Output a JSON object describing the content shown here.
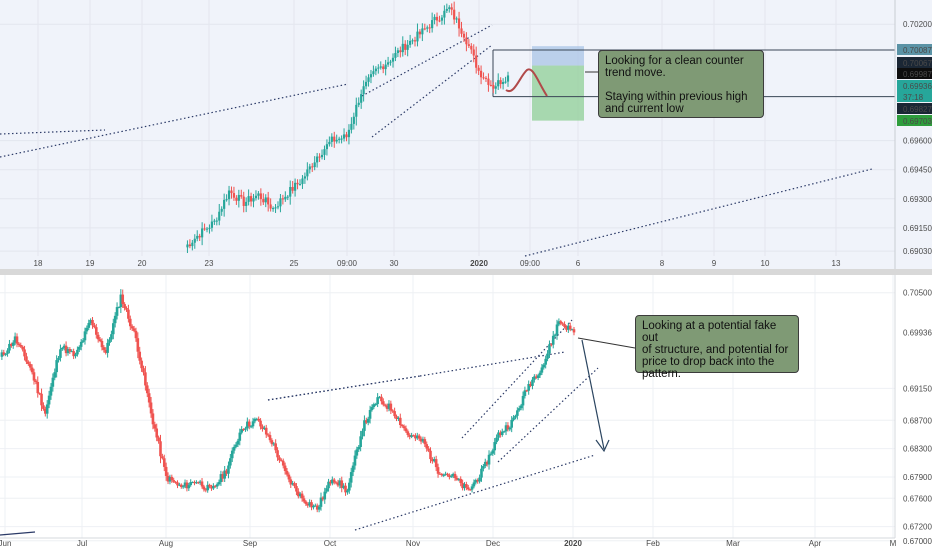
{
  "chart_data": [
    {
      "type": "candlestick",
      "panel": "top",
      "timeframe": "intraday",
      "x_tick_labels": [
        "18",
        "19",
        "20",
        "23",
        "25",
        "09:00",
        "30",
        "2020",
        "09:00",
        "6",
        "8",
        "9",
        "10",
        "13"
      ],
      "y_tick_labels": [
        "0.70200",
        "0.69600",
        "0.69450",
        "0.69300",
        "0.69150",
        "0.69030"
      ],
      "ylim": [
        0.69005,
        0.70325
      ],
      "price_tags": [
        {
          "value": "0.70087",
          "color": "#5b93a6"
        },
        {
          "value": "0.70067",
          "color": "#1b2735"
        },
        {
          "value": "0.69987",
          "color": "#0e0e0e"
        },
        {
          "value": "0.69936",
          "color": "#26a69a"
        },
        {
          "value": "37:18",
          "color": "#26a69a"
        },
        {
          "value": "0.69827",
          "color": "#1b2735"
        },
        {
          "value": "0.69703",
          "color": "#2e9d3c"
        }
      ],
      "horizontal_levels": [
        0.70067,
        0.69827
      ],
      "trade_zone": {
        "entry": 0.69987,
        "take_profit": 0.69703,
        "stop_loss": 0.70087
      },
      "annotation": "Looking for a clean counter\ntrend move.\n\nStaying within previous high\nand current low"
    },
    {
      "type": "candlestick",
      "panel": "bottom",
      "timeframe": "daily",
      "x_tick_labels": [
        "Jun",
        "Jul",
        "Aug",
        "Sep",
        "Oct",
        "Nov",
        "Dec",
        "2020",
        "Feb",
        "Mar",
        "Apr",
        "M"
      ],
      "y_tick_labels": [
        "0.70500",
        "0.69936",
        "0.69150",
        "0.68700",
        "0.68300",
        "0.67900",
        "0.67600",
        "0.67200",
        "0.67000"
      ],
      "ylim": [
        0.6687,
        0.7075
      ],
      "last_price_tag": {
        "value": "0.69936",
        "color": "#ef5350"
      },
      "annotation": "Looking at a potential fake out\nof structure, and potential for\nprice to drop back into the\npattern."
    }
  ],
  "colors": {
    "bull": "#26a69a",
    "bear": "#ef5350",
    "top_background": "#f0f3fa",
    "bottom_background": "#ffffff",
    "note_fill": "#7f9a75",
    "divider": "#d8d8d8"
  }
}
